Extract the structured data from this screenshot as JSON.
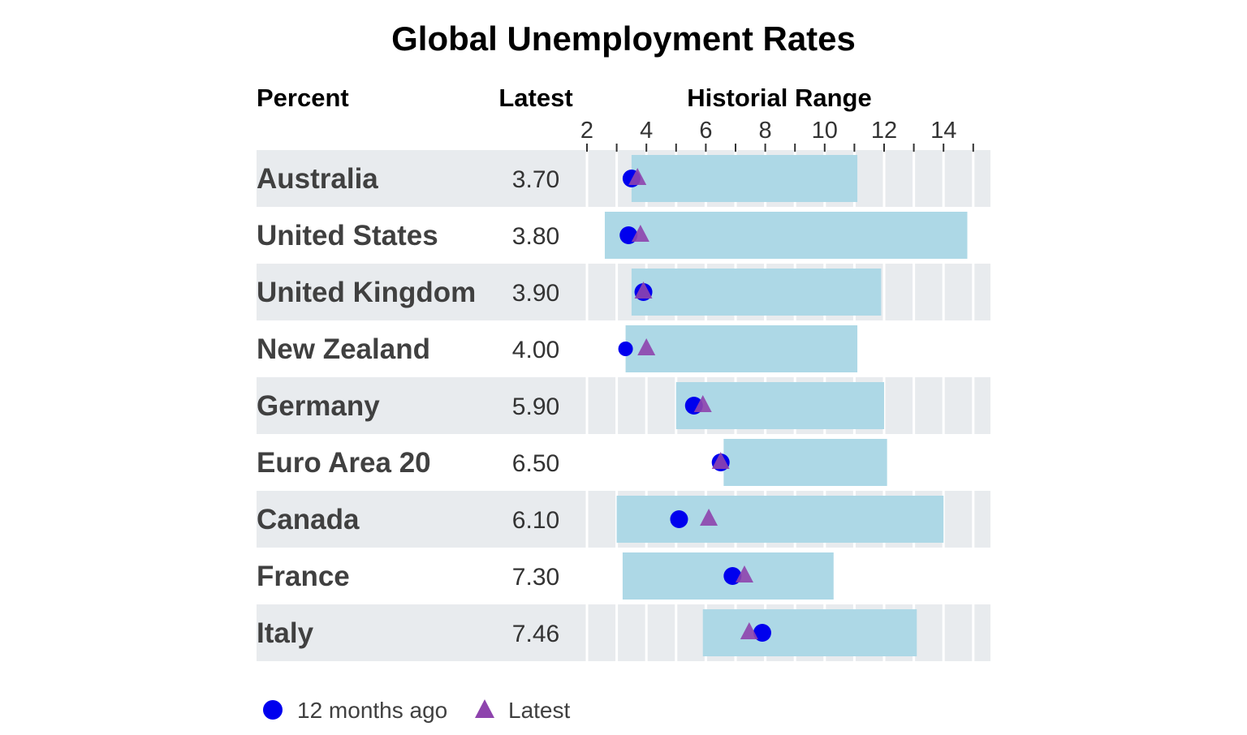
{
  "chart_data": {
    "type": "range-dot",
    "title": "Global Unemployment Rates",
    "column_headers": {
      "label": "Percent",
      "latest": "Latest",
      "range": "Historial Range"
    },
    "x_ticks": [
      2,
      4,
      6,
      8,
      10,
      12,
      14
    ],
    "xlim": [
      2,
      15
    ],
    "rows": [
      {
        "country": "Australia",
        "latest_label": "3.70",
        "range_min": 3.5,
        "range_max": 11.1,
        "months_ago_12": 3.5,
        "latest": 3.7
      },
      {
        "country": "United States",
        "latest_label": "3.80",
        "range_min": 2.6,
        "range_max": 14.8,
        "months_ago_12": 3.4,
        "latest": 3.8
      },
      {
        "country": "United Kingdom",
        "latest_label": "3.90",
        "range_min": 3.5,
        "range_max": 11.9,
        "months_ago_12": 3.9,
        "latest": 3.9
      },
      {
        "country": "New Zealand",
        "latest_label": "4.00",
        "range_min": 3.3,
        "range_max": 11.1,
        "months_ago_12": 3.3,
        "latest": 4.0
      },
      {
        "country": "Germany",
        "latest_label": "5.90",
        "range_min": 5.0,
        "range_max": 12.0,
        "months_ago_12": 5.6,
        "latest": 5.9
      },
      {
        "country": "Euro Area 20",
        "latest_label": "6.50",
        "range_min": 6.6,
        "range_max": 12.1,
        "months_ago_12": 6.5,
        "latest": 6.5
      },
      {
        "country": "Canada",
        "latest_label": "6.10",
        "range_min": 3.0,
        "range_max": 14.0,
        "months_ago_12": 5.1,
        "latest": 6.1
      },
      {
        "country": "France",
        "latest_label": "7.30",
        "range_min": 3.2,
        "range_max": 10.3,
        "months_ago_12": 6.9,
        "latest": 7.3
      },
      {
        "country": "Italy",
        "latest_label": "7.46",
        "range_min": 5.9,
        "range_max": 13.1,
        "months_ago_12": 7.9,
        "latest": 7.46
      }
    ],
    "legend": [
      {
        "label": "12 months ago",
        "shape": "circle"
      },
      {
        "label": "Latest",
        "shape": "triangle"
      }
    ],
    "colors": {
      "row_band": "#e8ebee",
      "range_bar": "#add8e6",
      "dot": "#0000ee",
      "triangle": "#8e44ad",
      "label_text": "#404040"
    }
  }
}
